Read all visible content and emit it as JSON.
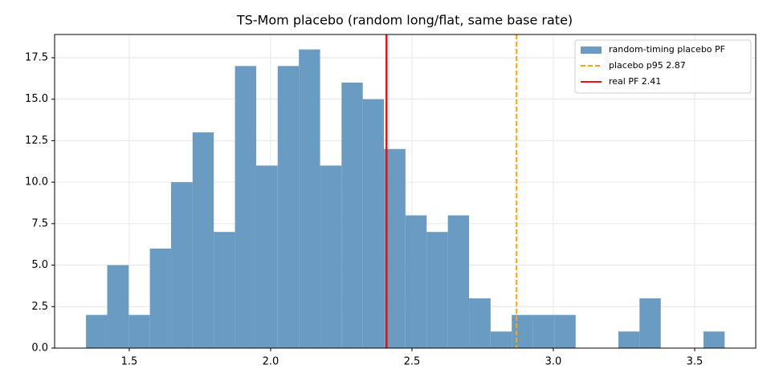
{
  "chart_data": {
    "type": "histogram",
    "title": "TS-Mom placebo (random long/flat, same base rate)",
    "bins": [
      1.347,
      1.422,
      1.498,
      1.573,
      1.648,
      1.724,
      1.799,
      1.874,
      1.949,
      2.025,
      2.1,
      2.175,
      2.251,
      2.326,
      2.401,
      2.477,
      2.552,
      2.627,
      2.702,
      2.778,
      2.853,
      2.928,
      3.004,
      3.079,
      3.154,
      3.23,
      3.305,
      3.38,
      3.455,
      3.531,
      3.606
    ],
    "series": [
      {
        "name": "random-timing placebo PF",
        "color": "#6a9bc3",
        "values": [
          2,
          5,
          2,
          6,
          10,
          13,
          7,
          17,
          11,
          17,
          18,
          11,
          16,
          15,
          12,
          8,
          7,
          8,
          3,
          1,
          2,
          2,
          2,
          0,
          0,
          1,
          3,
          0,
          0,
          1
        ]
      }
    ],
    "vlines": [
      {
        "name": "placebo p95 2.87",
        "x": 2.87,
        "color": "#ffa500",
        "dashed": true
      },
      {
        "name": "real PF 2.41",
        "x": 2.41,
        "color": "#ee1111",
        "dashed": false
      }
    ],
    "xlim": [
      1.236,
      3.716
    ],
    "xticks": [
      1.5,
      {
        "value": 2.0,
        "label": "2.0"
      },
      2.5,
      {
        "value": 3.0,
        "label": "3.0"
      },
      3.5
    ],
    "ylim": [
      0,
      18.9
    ],
    "yticks": [
      {
        "value": 0,
        "label": "0.0"
      },
      2.5,
      {
        "value": 5,
        "label": "5.0"
      },
      7.5,
      {
        "value": 10,
        "label": "10.0"
      },
      12.5,
      {
        "value": 15,
        "label": "15.0"
      },
      17.5
    ],
    "grid": true,
    "legend": "upper right"
  }
}
